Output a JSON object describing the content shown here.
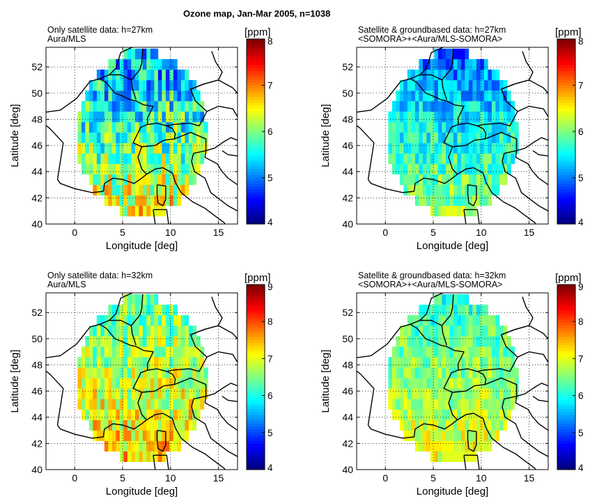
{
  "figure": {
    "title": "Ozone map,  Jan-Mar 2005, n=1038"
  },
  "chart_data": [
    {
      "type": "heatmap",
      "title_lines": [
        "Only satellite data: h=27km",
        "Aura/MLS"
      ],
      "xlabel": "Longitude [deg]",
      "ylabel": "Latitude [deg]",
      "xlim": [
        -3,
        17
      ],
      "ylim": [
        40,
        53.5
      ],
      "xticks": [
        0,
        5,
        10,
        15
      ],
      "yticks": [
        40,
        42,
        44,
        46,
        48,
        50,
        52
      ],
      "grid": true,
      "colorbar": {
        "unit": "[ppm]",
        "range": [
          4,
          8
        ],
        "ticks": [
          4,
          5,
          6,
          7,
          8
        ]
      },
      "map_extent": {
        "center_lon": 7.0,
        "center_lat": 46.9,
        "radius_deg": 6.3
      },
      "mean_field": {
        "base_ppm": 6.0,
        "north_ppm": 5.1,
        "south_ppm": 6.5,
        "noise_ppm": 0.75
      },
      "overlay": "country borders and coastlines"
    },
    {
      "type": "heatmap",
      "title_lines": [
        "Satellite & groundbased data: h=27km",
        "<SOMORA>+<Aura/MLS-SOMORA>"
      ],
      "xlabel": "Longitude [deg]",
      "ylabel": "Latitude [deg]",
      "xlim": [
        -3,
        17
      ],
      "ylim": [
        40,
        53.5
      ],
      "xticks": [
        0,
        5,
        10,
        15
      ],
      "yticks": [
        40,
        42,
        44,
        46,
        48,
        50,
        52
      ],
      "grid": true,
      "colorbar": {
        "unit": "[ppm]",
        "range": [
          4,
          8
        ],
        "ticks": [
          4,
          5,
          6,
          7,
          8
        ]
      },
      "map_extent": {
        "center_lon": 7.0,
        "center_lat": 46.9,
        "radius_deg": 6.3
      },
      "mean_field": {
        "base_ppm": 5.75,
        "north_ppm": 4.9,
        "south_ppm": 6.2,
        "noise_ppm": 0.45
      },
      "overlay": "country borders and coastlines"
    },
    {
      "type": "heatmap",
      "title_lines": [
        "Only satellite data: h=32km",
        "Aura/MLS"
      ],
      "xlabel": "Longitude [deg]",
      "ylabel": "Latitude [deg]",
      "xlim": [
        -3,
        17
      ],
      "ylim": [
        40,
        53.5
      ],
      "xticks": [
        0,
        5,
        10,
        15
      ],
      "yticks": [
        40,
        42,
        44,
        46,
        48,
        50,
        52
      ],
      "grid": true,
      "colorbar": {
        "unit": "[ppm]",
        "range": [
          4,
          9
        ],
        "ticks": [
          4,
          5,
          6,
          7,
          8,
          9
        ]
      },
      "map_extent": {
        "center_lon": 7.0,
        "center_lat": 46.9,
        "radius_deg": 6.3
      },
      "mean_field": {
        "base_ppm": 7.0,
        "north_ppm": 6.3,
        "south_ppm": 7.4,
        "noise_ppm": 0.7
      },
      "overlay": "country borders and coastlines"
    },
    {
      "type": "heatmap",
      "title_lines": [
        "Satellite & groundbased data: h=32km",
        "<SOMORA>+<Aura/MLS-SOMORA>"
      ],
      "xlabel": "Longitude [deg]",
      "ylabel": "Latitude [deg]",
      "xlim": [
        -3,
        17
      ],
      "ylim": [
        40,
        53.5
      ],
      "xticks": [
        0,
        5,
        10,
        15
      ],
      "yticks": [
        40,
        42,
        44,
        46,
        48,
        50,
        52
      ],
      "grid": true,
      "colorbar": {
        "unit": "[ppm]",
        "range": [
          4,
          9
        ],
        "ticks": [
          4,
          5,
          6,
          7,
          8,
          9
        ]
      },
      "map_extent": {
        "center_lon": 7.0,
        "center_lat": 46.9,
        "radius_deg": 6.3
      },
      "mean_field": {
        "base_ppm": 6.75,
        "north_ppm": 6.1,
        "south_ppm": 7.1,
        "noise_ppm": 0.5
      },
      "overlay": "country borders and coastlines"
    }
  ],
  "colors": {
    "colormap": "jet",
    "frame": "#000000",
    "grid": "#000000",
    "borders": "#000000"
  }
}
